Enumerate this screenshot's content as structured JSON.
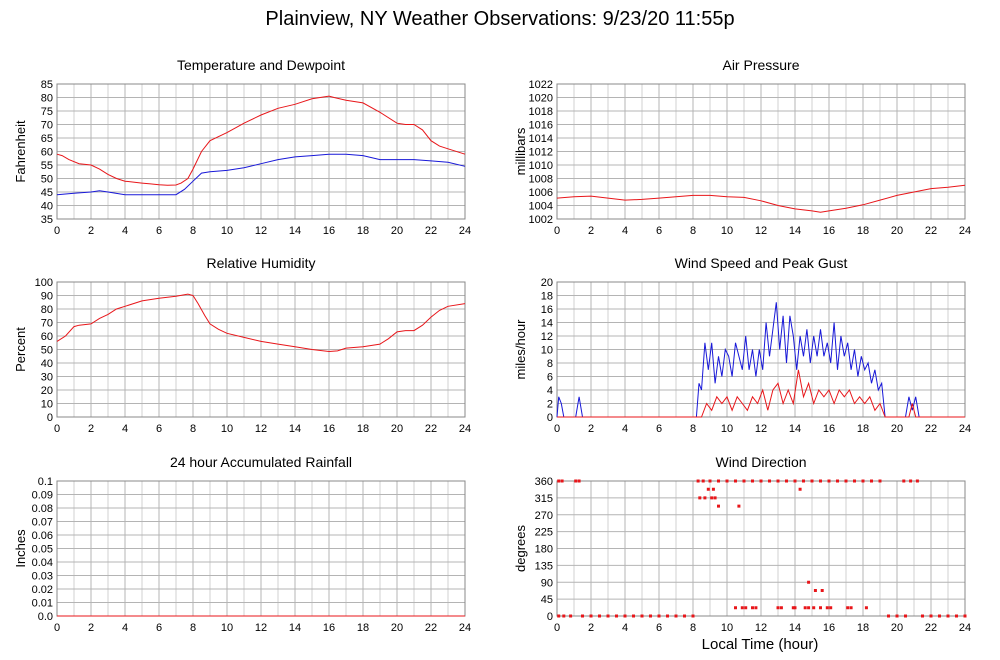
{
  "page_title": "Plainview, NY Weather Observations: 9/23/20 11:55p",
  "x_axis_caption": "Local Time (hour)",
  "colors": {
    "red": "#e8161a",
    "blue": "#1818d8",
    "grid": "#b4b4b4"
  },
  "chart_data": [
    {
      "id": "temp",
      "type": "line",
      "title": "Temperature and Dewpoint",
      "ylabel": "Fahrenheit",
      "xlim": [
        0,
        24
      ],
      "ylim": [
        35,
        85
      ],
      "xticks": [
        0,
        2,
        4,
        6,
        8,
        10,
        12,
        14,
        16,
        18,
        20,
        22,
        24
      ],
      "yticks": [
        35,
        40,
        45,
        50,
        55,
        60,
        65,
        70,
        75,
        80,
        85
      ],
      "ytick_labels": [
        "35",
        "40",
        "45",
        "50",
        "55",
        "60",
        "65",
        "70",
        "75",
        "80",
        "85"
      ],
      "grid": true,
      "series": [
        {
          "color": "#e8161a",
          "x": [
            0,
            0.3,
            0.7,
            1.3,
            2,
            2.5,
            3,
            3.5,
            4,
            5,
            5.5,
            6,
            6.5,
            7,
            7.3,
            7.7,
            8,
            8.5,
            9,
            10,
            11,
            12,
            13,
            14,
            15,
            16,
            16.3,
            17,
            18,
            19,
            20,
            20.5,
            21,
            21.5,
            22,
            22.5,
            23,
            24
          ],
          "y": [
            59,
            58.5,
            57,
            55.5,
            55,
            53.5,
            51.5,
            50,
            49,
            48.3,
            48,
            47.7,
            47.5,
            47.6,
            48.3,
            50,
            53.5,
            60,
            64,
            67,
            70.5,
            73.5,
            76,
            77.5,
            79.5,
            80.5,
            80,
            79,
            78,
            74.5,
            70.5,
            70,
            70,
            68,
            64,
            62,
            61,
            59
          ]
        },
        {
          "color": "#1818d8",
          "x": [
            0,
            1,
            2,
            2.5,
            3,
            4,
            5,
            6,
            7,
            7.5,
            8,
            8.5,
            9,
            10,
            11,
            12,
            13,
            14,
            15,
            16,
            17,
            18,
            19,
            20,
            21,
            22,
            23,
            24
          ],
          "y": [
            44,
            44.5,
            45,
            45.5,
            45,
            44,
            44,
            44,
            44,
            46,
            49,
            52,
            52.5,
            53,
            54,
            55.5,
            57,
            58,
            58.5,
            59,
            59,
            58.5,
            57,
            57,
            57,
            56.5,
            56,
            54.5
          ]
        }
      ]
    },
    {
      "id": "press",
      "type": "line",
      "title": "Air Pressure",
      "ylabel": "millibars",
      "xlim": [
        0,
        24
      ],
      "ylim": [
        1002,
        1022
      ],
      "xticks": [
        0,
        2,
        4,
        6,
        8,
        10,
        12,
        14,
        16,
        18,
        20,
        22,
        24
      ],
      "yticks": [
        1002,
        1004,
        1006,
        1008,
        1010,
        1012,
        1014,
        1016,
        1018,
        1020,
        1022
      ],
      "ytick_labels": [
        "1002",
        "1004",
        "1006",
        "1008",
        "1010",
        "1012",
        "1014",
        "1016",
        "1018",
        "1020",
        "1022"
      ],
      "grid": true,
      "series": [
        {
          "color": "#e8161a",
          "x": [
            0,
            1,
            2,
            3,
            4,
            5,
            6,
            7,
            8,
            9,
            10,
            11,
            12,
            13,
            14,
            15,
            15.5,
            16,
            17,
            18,
            19,
            20,
            21,
            22,
            23,
            24
          ],
          "y": [
            1005.1,
            1005.3,
            1005.4,
            1005.1,
            1004.8,
            1004.9,
            1005.1,
            1005.3,
            1005.5,
            1005.5,
            1005.3,
            1005.2,
            1004.7,
            1004.0,
            1003.5,
            1003.2,
            1003.0,
            1003.2,
            1003.6,
            1004.1,
            1004.8,
            1005.5,
            1006.0,
            1006.5,
            1006.7,
            1007.0
          ]
        }
      ]
    },
    {
      "id": "rh",
      "type": "line",
      "title": "Relative Humidity",
      "ylabel": "Percent",
      "xlim": [
        0,
        24
      ],
      "ylim": [
        0,
        100
      ],
      "xticks": [
        0,
        2,
        4,
        6,
        8,
        10,
        12,
        14,
        16,
        18,
        20,
        22,
        24
      ],
      "yticks": [
        0,
        10,
        20,
        30,
        40,
        50,
        60,
        70,
        80,
        90,
        100
      ],
      "ytick_labels": [
        "0",
        "10",
        "20",
        "30",
        "40",
        "50",
        "60",
        "70",
        "80",
        "90",
        "100"
      ],
      "grid": true,
      "series": [
        {
          "color": "#e8161a",
          "x": [
            0,
            0.5,
            1,
            1.3,
            2,
            2.5,
            3,
            3.5,
            4,
            5,
            6,
            7,
            7.7,
            8,
            8.3,
            8.7,
            9,
            9.5,
            10,
            11,
            12,
            13,
            14,
            15,
            16,
            16.5,
            17,
            18,
            19,
            19.5,
            20,
            20.5,
            21,
            21.5,
            22,
            22.5,
            23,
            24
          ],
          "y": [
            56,
            60,
            67,
            68,
            69,
            73,
            76,
            80,
            82,
            86,
            88,
            89.5,
            91,
            90,
            84,
            75,
            69,
            65,
            62,
            59,
            56,
            54,
            52,
            50,
            48.5,
            49,
            51,
            52,
            54,
            58,
            63,
            64,
            64,
            68,
            74,
            79,
            82,
            84
          ]
        }
      ]
    },
    {
      "id": "wind",
      "type": "line",
      "title": "Wind Speed and Peak Gust",
      "ylabel": "miles/hour",
      "xlim": [
        0,
        24
      ],
      "ylim": [
        0,
        20
      ],
      "xticks": [
        0,
        2,
        4,
        6,
        8,
        10,
        12,
        14,
        16,
        18,
        20,
        22,
        24
      ],
      "yticks": [
        0,
        2,
        4,
        6,
        8,
        10,
        12,
        14,
        16,
        18,
        20
      ],
      "ytick_labels": [
        "0",
        "2",
        "4",
        "6",
        "8",
        "10",
        "12",
        "14",
        "16",
        "18",
        "20"
      ],
      "grid": true,
      "series": [
        {
          "color": "#1818d8",
          "x": [
            0,
            0.1,
            0.25,
            0.4,
            1.1,
            1.3,
            1.5,
            8.2,
            8.35,
            8.5,
            8.7,
            8.9,
            9.1,
            9.3,
            9.5,
            9.7,
            9.9,
            10.1,
            10.3,
            10.5,
            10.7,
            10.9,
            11.1,
            11.3,
            11.5,
            11.7,
            11.9,
            12.1,
            12.3,
            12.5,
            12.7,
            12.9,
            13.1,
            13.3,
            13.5,
            13.7,
            13.9,
            14.1,
            14.3,
            14.5,
            14.7,
            14.9,
            15.1,
            15.3,
            15.5,
            15.7,
            15.9,
            16.1,
            16.3,
            16.5,
            16.7,
            16.9,
            17.1,
            17.3,
            17.5,
            17.7,
            17.9,
            18.1,
            18.3,
            18.5,
            18.7,
            18.9,
            19.1,
            19.3,
            20.5,
            20.7,
            20.9,
            21.1,
            21.3,
            24
          ],
          "y": [
            0,
            3,
            2,
            0,
            0,
            3,
            0,
            0,
            5,
            4,
            11,
            7,
            11,
            5,
            9,
            6,
            10,
            9,
            6,
            11,
            9,
            7,
            12,
            7,
            10,
            6,
            10,
            7,
            14,
            9,
            13,
            17,
            10,
            15,
            8,
            15,
            12,
            7,
            12,
            9,
            13,
            8,
            12,
            9,
            13,
            9,
            11,
            8,
            14,
            7,
            12,
            9,
            11,
            7,
            10,
            6,
            9,
            7,
            8,
            5,
            7,
            4,
            5,
            0,
            0,
            3,
            1,
            3,
            0,
            0
          ]
        },
        {
          "color": "#e8161a",
          "x": [
            0,
            8.5,
            8.8,
            9.1,
            9.4,
            9.7,
            10.0,
            10.3,
            10.6,
            10.9,
            11.2,
            11.5,
            11.8,
            12.1,
            12.4,
            12.7,
            13.0,
            13.3,
            13.6,
            13.9,
            14.2,
            14.5,
            14.8,
            15.1,
            15.4,
            15.7,
            16.0,
            16.3,
            16.6,
            16.9,
            17.2,
            17.5,
            17.8,
            18.1,
            18.4,
            18.7,
            19.0,
            19.3,
            20.7,
            20.9,
            21.1,
            24
          ],
          "y": [
            0,
            0,
            2,
            1,
            3,
            2,
            3,
            1,
            3,
            2,
            1,
            3,
            2,
            4,
            1,
            4,
            5,
            2,
            4,
            2,
            7,
            3,
            5,
            2,
            4,
            3,
            4,
            2,
            4,
            3,
            4,
            2,
            3,
            2,
            3,
            1,
            2,
            0,
            0,
            2,
            0,
            0
          ]
        }
      ]
    },
    {
      "id": "rain",
      "type": "line",
      "title": "24 hour Accumulated Rainfall",
      "ylabel": "Inches",
      "xlim": [
        0,
        24
      ],
      "ylim": [
        0,
        0.1
      ],
      "xticks": [
        0,
        2,
        4,
        6,
        8,
        10,
        12,
        14,
        16,
        18,
        20,
        22,
        24
      ],
      "yticks": [
        0,
        0.01,
        0.02,
        0.03,
        0.04,
        0.05,
        0.06,
        0.07,
        0.08,
        0.09,
        0.1
      ],
      "ytick_labels": [
        "0.0",
        "0.01",
        "0.02",
        "0.03",
        "0.04",
        "0.05",
        "0.06",
        "0.07",
        "0.08",
        "0.09",
        "0.1"
      ],
      "grid": true,
      "series": [
        {
          "color": "#e8161a",
          "x": [
            0,
            24
          ],
          "y": [
            0,
            0
          ]
        }
      ]
    },
    {
      "id": "dir",
      "type": "scatter",
      "title": "Wind Direction",
      "ylabel": "degrees",
      "xlabel": "Local Time (hour)",
      "xlim": [
        0,
        24
      ],
      "ylim": [
        0,
        360
      ],
      "xticks": [
        0,
        2,
        4,
        6,
        8,
        10,
        12,
        14,
        16,
        18,
        20,
        22,
        24
      ],
      "yticks": [
        0,
        45,
        90,
        135,
        180,
        225,
        270,
        315,
        360
      ],
      "ytick_labels": [
        "0",
        "45",
        "90",
        "135",
        "180",
        "225",
        "270",
        "315",
        "360"
      ],
      "grid": true,
      "color": "#e8161a",
      "points": [
        [
          0.1,
          360
        ],
        [
          0.3,
          360
        ],
        [
          1.1,
          360
        ],
        [
          1.3,
          360
        ],
        [
          8.3,
          360
        ],
        [
          8.6,
          360
        ],
        [
          9.0,
          360
        ],
        [
          9.5,
          360
        ],
        [
          10.0,
          360
        ],
        [
          10.5,
          360
        ],
        [
          11.0,
          360
        ],
        [
          11.5,
          360
        ],
        [
          12.0,
          360
        ],
        [
          12.5,
          360
        ],
        [
          13.0,
          360
        ],
        [
          13.5,
          360
        ],
        [
          14.0,
          360
        ],
        [
          14.5,
          360
        ],
        [
          15.0,
          360
        ],
        [
          15.5,
          360
        ],
        [
          16.0,
          360
        ],
        [
          16.5,
          360
        ],
        [
          17.0,
          360
        ],
        [
          17.5,
          360
        ],
        [
          18.0,
          360
        ],
        [
          18.5,
          360
        ],
        [
          19.0,
          360
        ],
        [
          20.4,
          360
        ],
        [
          20.8,
          360
        ],
        [
          21.2,
          360
        ],
        [
          8.4,
          315
        ],
        [
          8.7,
          315
        ],
        [
          9.1,
          315
        ],
        [
          9.3,
          315
        ],
        [
          8.9,
          338
        ],
        [
          9.2,
          338
        ],
        [
          9.5,
          293
        ],
        [
          10.7,
          293
        ],
        [
          14.3,
          338
        ],
        [
          14.8,
          90
        ],
        [
          15.2,
          68
        ],
        [
          15.6,
          68
        ],
        [
          10.5,
          22
        ],
        [
          10.9,
          22
        ],
        [
          11.1,
          22
        ],
        [
          11.5,
          22
        ],
        [
          11.7,
          22
        ],
        [
          13.0,
          22
        ],
        [
          13.2,
          22
        ],
        [
          13.9,
          22
        ],
        [
          14.0,
          22
        ],
        [
          14.6,
          22
        ],
        [
          14.8,
          22
        ],
        [
          15.1,
          22
        ],
        [
          15.5,
          22
        ],
        [
          15.9,
          22
        ],
        [
          16.1,
          22
        ],
        [
          17.1,
          22
        ],
        [
          17.3,
          22
        ],
        [
          18.2,
          22
        ],
        [
          0.1,
          0
        ],
        [
          0.4,
          0
        ],
        [
          0.8,
          0
        ],
        [
          1.5,
          0
        ],
        [
          2.0,
          0
        ],
        [
          2.5,
          0
        ],
        [
          3.0,
          0
        ],
        [
          3.5,
          0
        ],
        [
          4.0,
          0
        ],
        [
          4.5,
          0
        ],
        [
          5.0,
          0
        ],
        [
          5.5,
          0
        ],
        [
          6.0,
          0
        ],
        [
          6.5,
          0
        ],
        [
          7.0,
          0
        ],
        [
          7.5,
          0
        ],
        [
          8.0,
          0
        ],
        [
          19.5,
          0
        ],
        [
          20.0,
          0
        ],
        [
          20.5,
          0
        ],
        [
          21.5,
          0
        ],
        [
          22.0,
          0
        ],
        [
          22.5,
          0
        ],
        [
          23.0,
          0
        ],
        [
          23.5,
          0
        ],
        [
          24.0,
          0
        ]
      ]
    }
  ]
}
